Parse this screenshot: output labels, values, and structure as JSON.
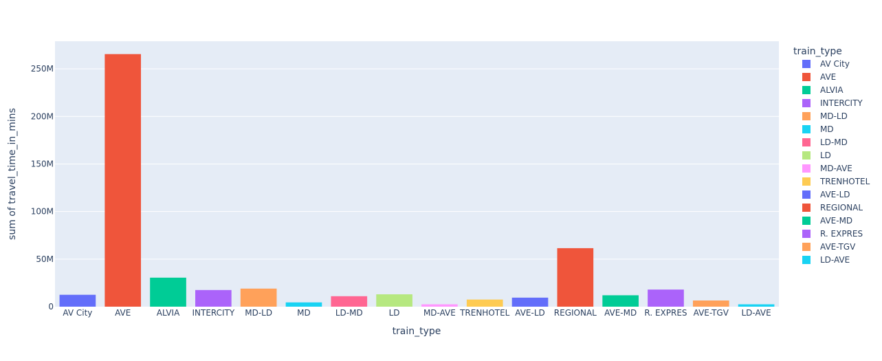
{
  "chart_data": {
    "type": "bar",
    "xlabel": "train_type",
    "ylabel": "sum of travel_time_in_mins",
    "legend_title": "train_type",
    "legend_placement": "right",
    "grid": true,
    "ylim": [
      0,
      279000000
    ],
    "yticks": [
      {
        "value": 0,
        "label": "0"
      },
      {
        "value": 50000000,
        "label": "50M"
      },
      {
        "value": 100000000,
        "label": "100M"
      },
      {
        "value": 150000000,
        "label": "150M"
      },
      {
        "value": 200000000,
        "label": "200M"
      },
      {
        "value": 250000000,
        "label": "250M"
      }
    ],
    "categories": [
      "AV City",
      "AVE",
      "ALVIA",
      "INTERCITY",
      "MD-LD",
      "MD",
      "LD-MD",
      "LD",
      "MD-AVE",
      "TRENHOTEL",
      "AVE-LD",
      "REGIONAL",
      "AVE-MD",
      "R. EXPRES",
      "AVE-TGV",
      "LD-AVE"
    ],
    "values": [
      12500000,
      265500000,
      30500000,
      17500000,
      19000000,
      4500000,
      11000000,
      13000000,
      2500000,
      7500000,
      9500000,
      61500000,
      12000000,
      18000000,
      6500000,
      2500000
    ],
    "colors": [
      "#636efa",
      "#EF553B",
      "#00cc96",
      "#ab63fa",
      "#FFA15A",
      "#19d3f3",
      "#FF6692",
      "#B6E880",
      "#FF97FF",
      "#FECB52",
      "#636efa",
      "#EF553B",
      "#00cc96",
      "#ab63fa",
      "#FFA15A",
      "#19d3f3"
    ]
  }
}
